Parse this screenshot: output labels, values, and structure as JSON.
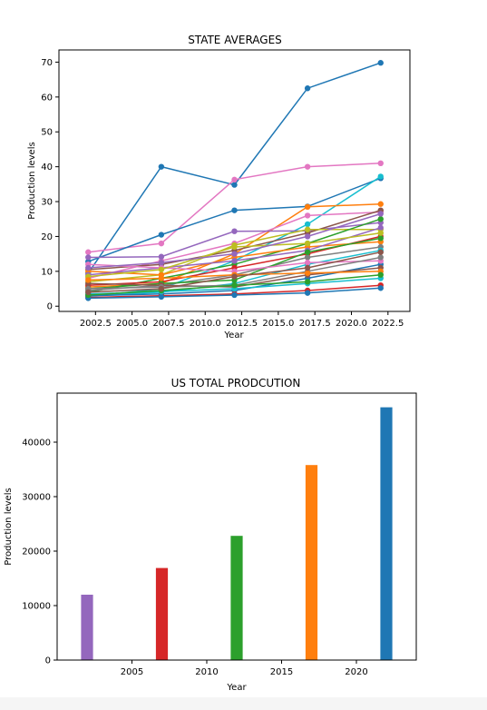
{
  "chart_data": [
    {
      "type": "line",
      "title": "STATE AVERAGES",
      "xlabel": "Year",
      "ylabel": "Production levels",
      "x": [
        2002,
        2007,
        2012,
        2017,
        2022
      ],
      "xlim": [
        2000.0,
        2024.0
      ],
      "ylim": [
        -1.5,
        73.5
      ],
      "xticks": [
        "2002.5",
        "2005.0",
        "2007.5",
        "2010.0",
        "2012.5",
        "2015.0",
        "2017.5",
        "2020.0",
        "2022.5"
      ],
      "yticks": [
        "0",
        "10",
        "20",
        "30",
        "40",
        "50",
        "60",
        "70"
      ],
      "legend": false,
      "grid": false,
      "series": [
        {
          "color": "#1f77b4",
          "values": [
            9.5,
            40.0,
            34.8,
            62.5,
            69.8
          ]
        },
        {
          "color": "#e377c2",
          "values": [
            15.5,
            18.0,
            36.3,
            40.0,
            41.0
          ]
        },
        {
          "color": "#1f77b4",
          "values": [
            12.8,
            20.5,
            27.5,
            28.6,
            36.7
          ]
        },
        {
          "color": "#17becf",
          "values": [
            2.8,
            5.0,
            13.0,
            23.5,
            37.2
          ]
        },
        {
          "color": "#ff7f0e",
          "values": [
            5.5,
            6.5,
            15.0,
            28.5,
            29.3
          ]
        },
        {
          "color": "#e377c2",
          "values": [
            8.0,
            13.0,
            18.0,
            26.0,
            27.0
          ]
        },
        {
          "color": "#9467bd",
          "values": [
            14.0,
            14.2,
            21.5,
            21.6,
            24.0
          ]
        },
        {
          "color": "#8c564b",
          "values": [
            10.5,
            12.0,
            16.0,
            21.0,
            27.5
          ]
        },
        {
          "color": "#bcbd22",
          "values": [
            7.0,
            9.0,
            17.5,
            22.0,
            22.0
          ]
        },
        {
          "color": "#2ca02c",
          "values": [
            4.0,
            8.0,
            12.0,
            18.0,
            25.0
          ]
        },
        {
          "color": "#d62728",
          "values": [
            6.0,
            7.0,
            11.0,
            15.0,
            20.0
          ]
        },
        {
          "color": "#ff7f0e",
          "values": [
            10.0,
            9.0,
            14.0,
            17.0,
            18.5
          ]
        },
        {
          "color": "#7f7f7f",
          "values": [
            4.5,
            6.0,
            9.0,
            14.0,
            17.0
          ]
        },
        {
          "color": "#17becf",
          "values": [
            3.0,
            4.0,
            6.5,
            12.0,
            16.0
          ]
        },
        {
          "color": "#9467bd",
          "values": [
            9.0,
            11.0,
            13.0,
            16.0,
            22.5
          ]
        },
        {
          "color": "#1f77b4",
          "values": [
            3.0,
            3.5,
            4.5,
            8.0,
            12.0
          ]
        },
        {
          "color": "#2ca02c",
          "values": [
            5.0,
            6.5,
            7.5,
            15.5,
            19.5
          ]
        },
        {
          "color": "#e377c2",
          "values": [
            12.0,
            11.0,
            10.0,
            12.5,
            13.0
          ]
        },
        {
          "color": "#8c564b",
          "values": [
            6.5,
            6.0,
            5.5,
            9.0,
            11.0
          ]
        },
        {
          "color": "#d62728",
          "values": [
            2.5,
            3.0,
            3.5,
            4.5,
            6.0
          ]
        },
        {
          "color": "#bcbd22",
          "values": [
            8.5,
            10.5,
            17.0,
            18.0,
            21.0
          ]
        },
        {
          "color": "#1f77b4",
          "values": [
            2.3,
            2.7,
            3.2,
            3.8,
            5.2
          ]
        },
        {
          "color": "#17becf",
          "values": [
            3.5,
            4.2,
            5.0,
            6.5,
            8.0
          ]
        },
        {
          "color": "#7f7f7f",
          "values": [
            5.0,
            5.5,
            6.0,
            10.0,
            14.0
          ]
        },
        {
          "color": "#ff7f0e",
          "values": [
            7.5,
            8.0,
            9.0,
            9.5,
            10.0
          ]
        },
        {
          "color": "#2ca02c",
          "values": [
            3.2,
            4.5,
            6.0,
            7.0,
            9.0
          ]
        },
        {
          "color": "#9467bd",
          "values": [
            11.0,
            12.5,
            15.0,
            20.0,
            26.5
          ]
        },
        {
          "color": "#8c564b",
          "values": [
            4.0,
            5.0,
            8.5,
            11.0,
            15.5
          ]
        }
      ]
    },
    {
      "type": "bar",
      "title": "US TOTAL PRODCUTION",
      "xlabel": "Year",
      "ylabel": "Production levels",
      "x": [
        2002,
        2007,
        2012,
        2017,
        2022
      ],
      "values": [
        12000,
        16900,
        22800,
        35800,
        46400
      ],
      "colors": [
        "#9467bd",
        "#d62728",
        "#2ca02c",
        "#ff7f0e",
        "#1f77b4"
      ],
      "xlim": [
        2000.0,
        2024.0
      ],
      "ylim": [
        0,
        49000
      ],
      "xticks": [
        "2005",
        "2010",
        "2015",
        "2020"
      ],
      "yticks": [
        "0",
        "10000",
        "20000",
        "30000",
        "40000"
      ],
      "legend": false,
      "grid": false
    }
  ]
}
